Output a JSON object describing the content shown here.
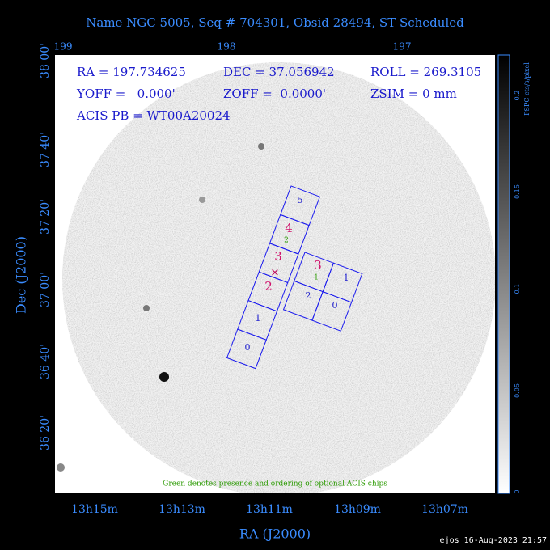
{
  "header": {
    "title": "Name NGC 5005, Seq # 704301, Obsid 28494, ST Scheduled"
  },
  "top_axis": [
    "199",
    "198",
    "197"
  ],
  "left_axis": {
    "title": "Dec (J2000)",
    "labels": [
      "38 00'",
      "37 40'",
      "37 20'",
      "37 00'",
      "36 40'",
      "36 20'"
    ]
  },
  "bottom_axis": {
    "title": "RA (J2000)",
    "labels": [
      "13h15m",
      "13h13m",
      "13h11m",
      "13h09m",
      "13h07m"
    ]
  },
  "colorbar": {
    "title": "PSPC cts/s/pixel",
    "labels": [
      "0.2",
      "0.15",
      "0.1",
      "0.05",
      "0"
    ]
  },
  "info": [
    "RA = 197.734625",
    "DEC = 37.056942",
    "ROLL = 269.3105",
    "YOFF =   0.000'",
    "ZOFF =  0.0000'",
    "ZSIM = 0 mm",
    "ACIS PB = WT00A20024"
  ],
  "chips": {
    "main": [
      "5",
      "4",
      "3",
      "2",
      "1",
      "0"
    ],
    "optional": [
      "2",
      "1"
    ],
    "side": [
      "3",
      "1",
      "2",
      "0"
    ]
  },
  "footer": {
    "note": "Green denotes presence and ordering of optional ACIS chips",
    "stamp": "ejos 16-Aug-2023 21:57"
  }
}
